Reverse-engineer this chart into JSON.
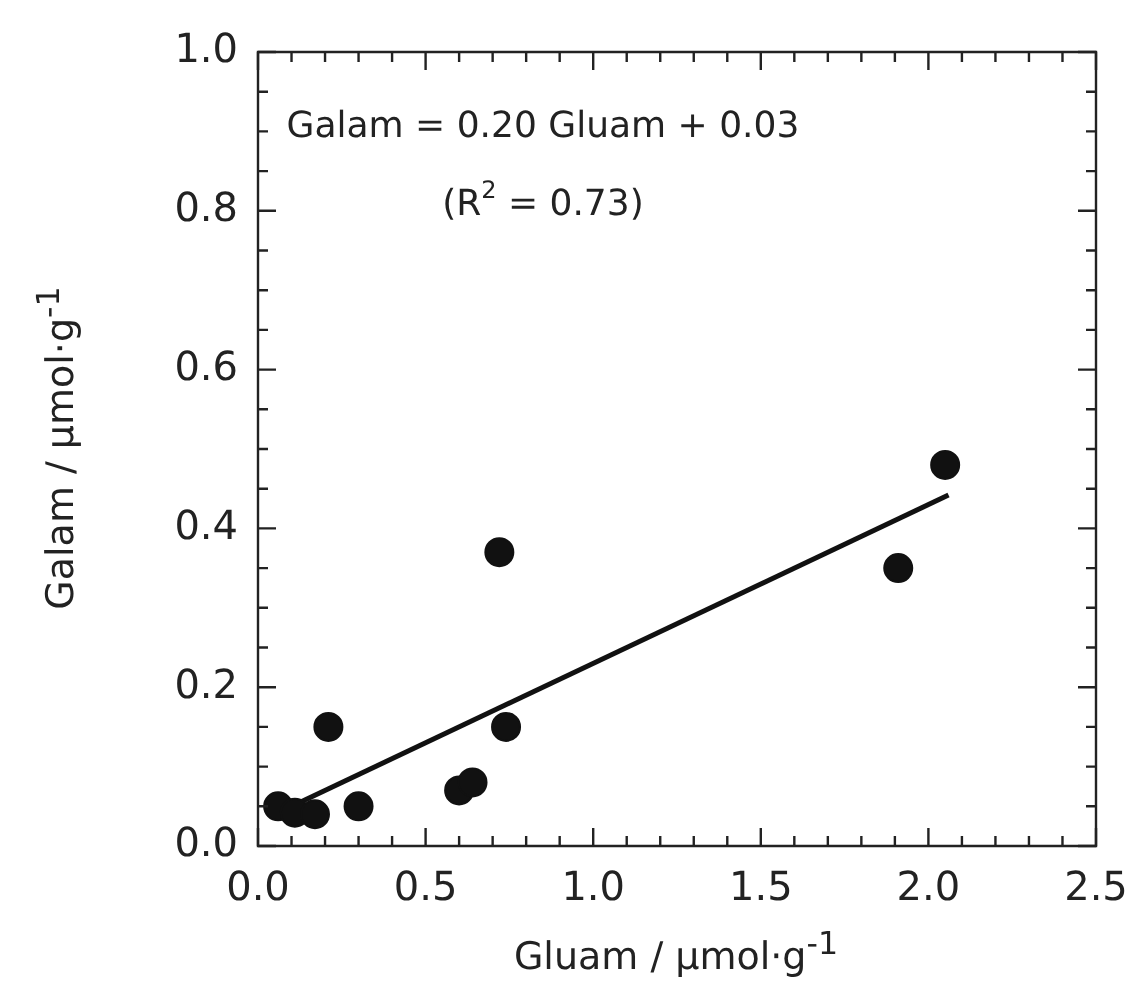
{
  "chart_data": {
    "type": "scatter",
    "xlabel": "Gluam / μmol·g$^{-1}$",
    "ylabel": "Galam / μmol·g$^{-1}$",
    "annotations": [
      "Galam = 0.20 Gluam + 0.03",
      "(R$^{2}$ = 0.73)"
    ],
    "xlim": [
      0,
      2.5
    ],
    "ylim": [
      0,
      1
    ],
    "xticks": [
      {
        "value": 0,
        "label": "0.0"
      },
      {
        "value": 0.1,
        "label": null
      },
      {
        "value": 0.2,
        "label": null
      },
      {
        "value": 0.3,
        "label": null
      },
      {
        "value": 0.4,
        "label": null
      },
      {
        "value": 0.5,
        "label": "0.5"
      },
      {
        "value": 0.6,
        "label": null
      },
      {
        "value": 0.7,
        "label": null
      },
      {
        "value": 0.8,
        "label": null
      },
      {
        "value": 0.9,
        "label": null
      },
      {
        "value": 1,
        "label": "1.0"
      },
      {
        "value": 1.1,
        "label": null
      },
      {
        "value": 1.2,
        "label": null
      },
      {
        "value": 1.3,
        "label": null
      },
      {
        "value": 1.4,
        "label": null
      },
      {
        "value": 1.5,
        "label": "1.5"
      },
      {
        "value": 1.6,
        "label": null
      },
      {
        "value": 1.7,
        "label": null
      },
      {
        "value": 1.8,
        "label": null
      },
      {
        "value": 1.9,
        "label": null
      },
      {
        "value": 2,
        "label": "2.0"
      },
      {
        "value": 2.1,
        "label": null
      },
      {
        "value": 2.2,
        "label": null
      },
      {
        "value": 2.3,
        "label": null
      },
      {
        "value": 2.4,
        "label": null
      },
      {
        "value": 2.5,
        "label": "2.5"
      }
    ],
    "yticks": [
      {
        "value": 0,
        "label": "0.0"
      },
      {
        "value": 0.05,
        "label": null
      },
      {
        "value": 0.1,
        "label": null
      },
      {
        "value": 0.15,
        "label": null
      },
      {
        "value": 0.2,
        "label": "0.2"
      },
      {
        "value": 0.25,
        "label": null
      },
      {
        "value": 0.3,
        "label": null
      },
      {
        "value": 0.35,
        "label": null
      },
      {
        "value": 0.4,
        "label": "0.4"
      },
      {
        "value": 0.45,
        "label": null
      },
      {
        "value": 0.5,
        "label": null
      },
      {
        "value": 0.55,
        "label": null
      },
      {
        "value": 0.6,
        "label": "0.6"
      },
      {
        "value": 0.65,
        "label": null
      },
      {
        "value": 0.7,
        "label": null
      },
      {
        "value": 0.75,
        "label": null
      },
      {
        "value": 0.8,
        "label": "0.8"
      },
      {
        "value": 0.85,
        "label": null
      },
      {
        "value": 0.9,
        "label": null
      },
      {
        "value": 0.95,
        "label": null
      },
      {
        "value": 1,
        "label": "1.0"
      }
    ],
    "grid": false,
    "legend": false,
    "series": [
      {
        "color": "#111111",
        "marker": "circle",
        "x": [
          0.06,
          0.11,
          0.17,
          0.21,
          0.3,
          0.6,
          0.64,
          0.72,
          0.74,
          1.91,
          2.05
        ],
        "values": [
          0.05,
          0.042,
          0.04,
          0.15,
          0.05,
          0.07,
          0.08,
          0.37,
          0.15,
          0.35,
          0.48
        ]
      },
      {
        "type": "line",
        "color": "#111111",
        "marker": "none",
        "line_style": "solid",
        "x": [
          0.11,
          2.06
        ],
        "values": [
          0.052,
          0.442
        ]
      }
    ]
  }
}
